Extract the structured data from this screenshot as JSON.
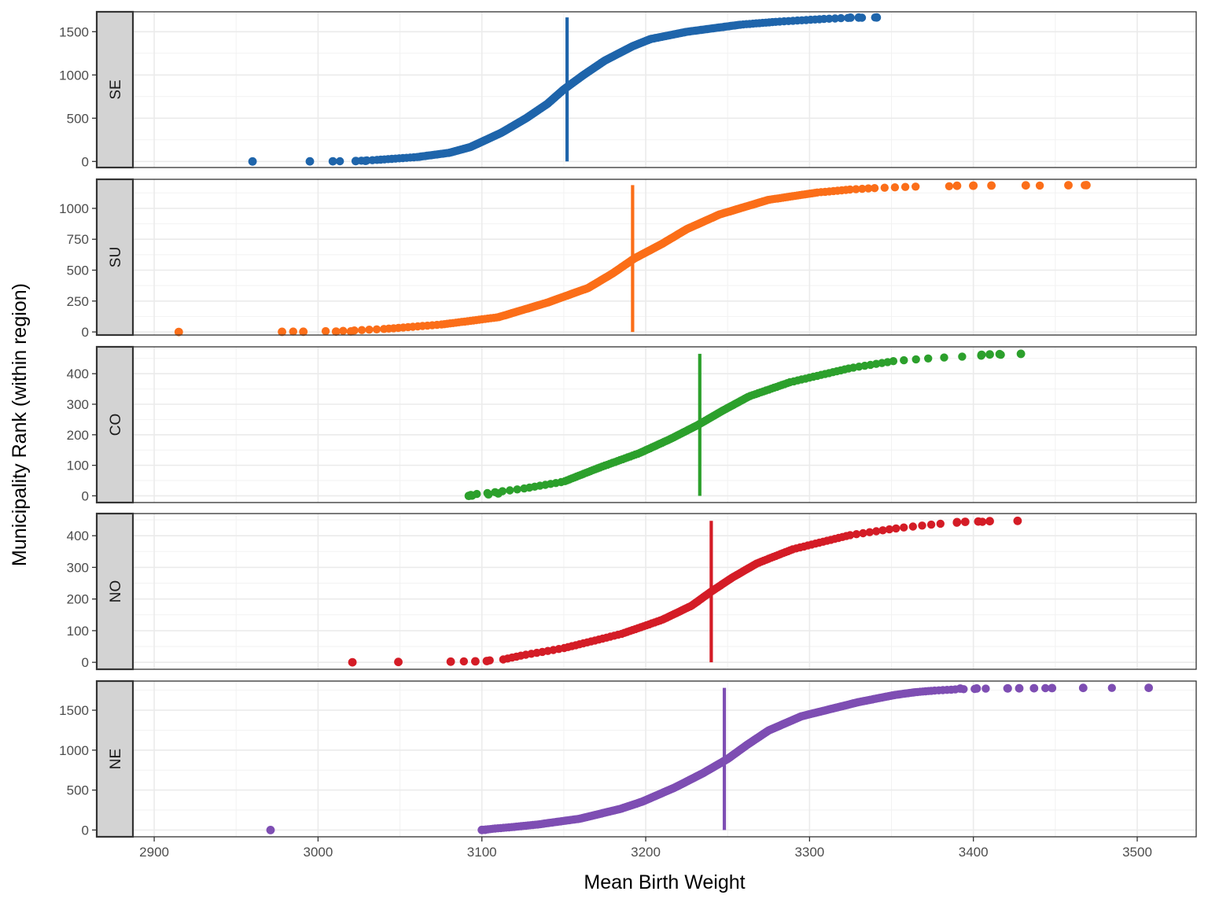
{
  "chart_data": {
    "type": "scatter",
    "xlabel": "Mean Birth Weight",
    "ylabel": "Municipality Rank (within region)",
    "xlim": [
      2887,
      3536
    ],
    "xticks": [
      2900,
      3000,
      3100,
      3200,
      3300,
      3400,
      3500
    ],
    "grid": true,
    "legend": "none",
    "panels": [
      {
        "name": "SE",
        "color": "#1f65ab",
        "n": 1665,
        "ylim": [
          -70,
          1730
        ],
        "yticks": [
          0,
          500,
          1000,
          1500
        ],
        "mean_line": 3152,
        "quantiles": [
          [
            0,
            2960
          ],
          [
            0.0006,
            2995
          ],
          [
            0.0012,
            3009
          ],
          [
            0.003,
            3022
          ],
          [
            0.01,
            3035
          ],
          [
            0.03,
            3060
          ],
          [
            0.06,
            3080
          ],
          [
            0.1,
            3093
          ],
          [
            0.2,
            3112
          ],
          [
            0.3,
            3127
          ],
          [
            0.4,
            3140
          ],
          [
            0.5,
            3150
          ],
          [
            0.6,
            3162
          ],
          [
            0.7,
            3175
          ],
          [
            0.8,
            3192
          ],
          [
            0.85,
            3203
          ],
          [
            0.9,
            3225
          ],
          [
            0.95,
            3258
          ],
          [
            0.97,
            3280
          ],
          [
            0.99,
            3310
          ],
          [
            0.995,
            3320
          ],
          [
            0.997,
            3325
          ],
          [
            0.998,
            3330
          ],
          [
            0.999,
            3340
          ],
          [
            1,
            3340
          ]
        ],
        "outliers": [
          [
            2960,
            0
          ],
          [
            2995,
            1
          ],
          [
            3009,
            2
          ],
          [
            3023,
            5
          ],
          [
            3029,
            7
          ],
          [
            3325,
            1663
          ],
          [
            3330,
            1664
          ],
          [
            3341,
            1665
          ]
        ]
      },
      {
        "name": "SU",
        "color": "#fb6e19",
        "n": 1188,
        "ylim": [
          -25,
          1235
        ],
        "yticks": [
          0,
          250,
          500,
          750,
          1000
        ],
        "mean_line": 3192,
        "quantiles": [
          [
            0,
            2915
          ],
          [
            0.002,
            2978
          ],
          [
            0.003,
            2991
          ],
          [
            0.006,
            3011
          ],
          [
            0.01,
            3022
          ],
          [
            0.02,
            3040
          ],
          [
            0.05,
            3075
          ],
          [
            0.1,
            3110
          ],
          [
            0.2,
            3140
          ],
          [
            0.3,
            3165
          ],
          [
            0.4,
            3180
          ],
          [
            0.5,
            3193
          ],
          [
            0.6,
            3210
          ],
          [
            0.7,
            3225
          ],
          [
            0.8,
            3245
          ],
          [
            0.9,
            3275
          ],
          [
            0.95,
            3305
          ],
          [
            0.97,
            3325
          ],
          [
            0.98,
            3340
          ],
          [
            0.99,
            3365
          ],
          [
            0.993,
            3390
          ],
          [
            0.995,
            3400
          ],
          [
            0.997,
            3432
          ],
          [
            0.999,
            3468
          ],
          [
            1,
            3468
          ]
        ],
        "outliers": [
          [
            2915,
            0
          ],
          [
            2978,
            1
          ],
          [
            2991,
            2
          ],
          [
            3011,
            3
          ],
          [
            3020,
            4
          ],
          [
            3390,
            1183
          ],
          [
            3400,
            1184
          ],
          [
            3411,
            1185
          ],
          [
            3432,
            1186
          ],
          [
            3458,
            1187
          ],
          [
            3469,
            1188
          ]
        ]
      },
      {
        "name": "CO",
        "color": "#2ca02c",
        "n": 465,
        "ylim": [
          -22,
          488
        ],
        "yticks": [
          0,
          100,
          200,
          300,
          400
        ],
        "mean_line": 3233,
        "quantiles": [
          [
            0,
            3092
          ],
          [
            0.01,
            3094
          ],
          [
            0.02,
            3104
          ],
          [
            0.05,
            3125
          ],
          [
            0.1,
            3150
          ],
          [
            0.2,
            3172
          ],
          [
            0.3,
            3196
          ],
          [
            0.4,
            3215
          ],
          [
            0.5,
            3232
          ],
          [
            0.6,
            3247
          ],
          [
            0.7,
            3263
          ],
          [
            0.8,
            3288
          ],
          [
            0.9,
            3325
          ],
          [
            0.95,
            3352
          ],
          [
            0.97,
            3375
          ],
          [
            0.98,
            3392
          ],
          [
            0.99,
            3410
          ],
          [
            1,
            3429
          ]
        ],
        "outliers": [
          [
            3092,
            0
          ],
          [
            3094,
            1
          ],
          [
            3104,
            5
          ],
          [
            3110,
            8
          ],
          [
            3405,
            462
          ],
          [
            3410,
            463
          ],
          [
            3416,
            464
          ],
          [
            3429,
            465
          ]
        ]
      },
      {
        "name": "NO",
        "color": "#d41c26",
        "n": 447,
        "ylim": [
          -22,
          470
        ],
        "yticks": [
          0,
          100,
          200,
          300,
          400
        ],
        "mean_line": 3240,
        "quantiles": [
          [
            0,
            3021
          ],
          [
            0.003,
            3049
          ],
          [
            0.005,
            3081
          ],
          [
            0.008,
            3095
          ],
          [
            0.012,
            3103
          ],
          [
            0.02,
            3113
          ],
          [
            0.05,
            3125
          ],
          [
            0.1,
            3150
          ],
          [
            0.2,
            3185
          ],
          [
            0.3,
            3210
          ],
          [
            0.4,
            3228
          ],
          [
            0.5,
            3240
          ],
          [
            0.6,
            3253
          ],
          [
            0.7,
            3268
          ],
          [
            0.8,
            3290
          ],
          [
            0.9,
            3325
          ],
          [
            0.95,
            3355
          ],
          [
            0.98,
            3380
          ],
          [
            0.99,
            3395
          ],
          [
            1,
            3427
          ]
        ],
        "outliers": [
          [
            3021,
            0
          ],
          [
            3049,
            1
          ],
          [
            3081,
            2
          ],
          [
            3096,
            3
          ],
          [
            3103,
            4
          ],
          [
            3390,
            443
          ],
          [
            3395,
            444
          ],
          [
            3403,
            445
          ],
          [
            3410,
            446
          ],
          [
            3427,
            447
          ]
        ]
      },
      {
        "name": "NE",
        "color": "#7e4eb3",
        "n": 1780,
        "ylim": [
          -85,
          1865
        ],
        "yticks": [
          0,
          500,
          1000,
          1500
        ],
        "mean_line": 3248,
        "quantiles": [
          [
            0,
            2971
          ],
          [
            0.0005,
            3100
          ],
          [
            0.003,
            3102
          ],
          [
            0.01,
            3108
          ],
          [
            0.02,
            3118
          ],
          [
            0.04,
            3135
          ],
          [
            0.08,
            3160
          ],
          [
            0.15,
            3185
          ],
          [
            0.2,
            3198
          ],
          [
            0.3,
            3218
          ],
          [
            0.4,
            3235
          ],
          [
            0.5,
            3250
          ],
          [
            0.6,
            3262
          ],
          [
            0.7,
            3275
          ],
          [
            0.8,
            3295
          ],
          [
            0.9,
            3330
          ],
          [
            0.95,
            3352
          ],
          [
            0.97,
            3365
          ],
          [
            0.98,
            3375
          ],
          [
            0.99,
            3390
          ],
          [
            0.995,
            3410
          ],
          [
            0.997,
            3430
          ],
          [
            0.999,
            3467
          ],
          [
            1,
            3507
          ]
        ],
        "outliers": [
          [
            2971,
            0
          ],
          [
            3100,
            1
          ],
          [
            3102,
            3
          ],
          [
            3392,
            1771
          ],
          [
            3402,
            1772
          ],
          [
            3421,
            1773
          ],
          [
            3428,
            1774
          ],
          [
            3437,
            1775
          ],
          [
            3448,
            1777
          ],
          [
            3467,
            1779
          ],
          [
            3507,
            1780
          ]
        ]
      }
    ]
  }
}
